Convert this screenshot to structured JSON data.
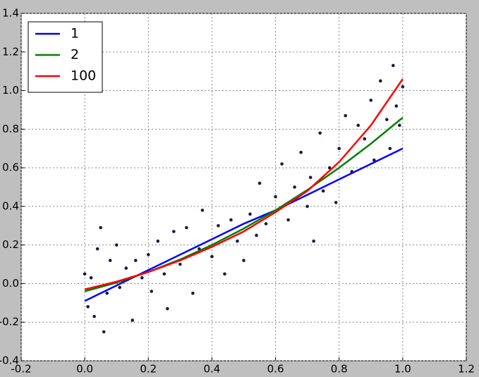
{
  "chart_data": {
    "type": "line",
    "xlim": [
      -0.2,
      1.2
    ],
    "xticks": [
      -0.2,
      {
        "value": 0,
        "label": "0.0"
      },
      0.2,
      0.4,
      0.6,
      0.8,
      {
        "value": 1,
        "label": "1.0"
      },
      1.2
    ],
    "ylim": [
      -0.4,
      1.4
    ],
    "yticks": [
      -0.4,
      -0.2,
      {
        "value": 0,
        "label": "0.0"
      },
      0.2,
      0.4,
      0.6,
      0.8,
      {
        "value": 1,
        "label": "1.0"
      },
      1.2,
      1.4
    ],
    "grid": true,
    "legend": "upper left",
    "points": {
      "color": "#1a1a40",
      "x": [
        0.0,
        0.01,
        0.02,
        0.03,
        0.04,
        0.05,
        0.06,
        0.07,
        0.08,
        0.1,
        0.11,
        0.13,
        0.15,
        0.16,
        0.18,
        0.2,
        0.21,
        0.23,
        0.25,
        0.26,
        0.28,
        0.3,
        0.32,
        0.34,
        0.36,
        0.37,
        0.4,
        0.42,
        0.44,
        0.46,
        0.48,
        0.5,
        0.52,
        0.54,
        0.55,
        0.57,
        0.6,
        0.62,
        0.64,
        0.66,
        0.68,
        0.7,
        0.71,
        0.72,
        0.74,
        0.75,
        0.77,
        0.79,
        0.8,
        0.82,
        0.84,
        0.86,
        0.88,
        0.9,
        0.91,
        0.93,
        0.95,
        0.96,
        0.97,
        0.98,
        1.0,
        0.99
      ],
      "y": [
        0.05,
        -0.12,
        0.03,
        -0.17,
        0.18,
        0.29,
        -0.25,
        -0.05,
        0.12,
        0.2,
        -0.02,
        0.08,
        -0.19,
        0.12,
        0.03,
        0.15,
        -0.04,
        0.22,
        0.05,
        -0.13,
        0.27,
        0.1,
        0.29,
        -0.05,
        0.18,
        0.38,
        0.14,
        0.3,
        0.05,
        0.33,
        0.22,
        0.12,
        0.36,
        0.25,
        0.52,
        0.31,
        0.45,
        0.62,
        0.33,
        0.5,
        0.68,
        0.4,
        0.55,
        0.22,
        0.78,
        0.48,
        0.6,
        0.42,
        0.7,
        0.87,
        0.58,
        0.82,
        0.75,
        0.95,
        0.64,
        1.05,
        0.85,
        0.7,
        1.13,
        0.92,
        1.02,
        0.82
      ]
    },
    "series": [
      {
        "name": "1",
        "color": "#0000ff",
        "x": [
          0,
          0.1,
          0.2,
          0.3,
          0.4,
          0.5,
          0.6,
          0.7,
          0.8,
          0.9,
          1.0
        ],
        "values": [
          -0.09,
          -0.01,
          0.07,
          0.15,
          0.23,
          0.31,
          0.38,
          0.46,
          0.54,
          0.62,
          0.7
        ]
      },
      {
        "name": "2",
        "color": "#008000",
        "x": [
          0,
          0.1,
          0.2,
          0.3,
          0.4,
          0.5,
          0.6,
          0.7,
          0.8,
          0.9,
          1.0
        ],
        "values": [
          -0.04,
          0.005,
          0.06,
          0.125,
          0.2,
          0.285,
          0.38,
          0.485,
          0.6,
          0.725,
          0.86
        ]
      },
      {
        "name": "100",
        "color": "#ff0000",
        "x": [
          0,
          0.1,
          0.2,
          0.3,
          0.4,
          0.5,
          0.6,
          0.7,
          0.8,
          0.9,
          1.0
        ],
        "values": [
          -0.03,
          0.01,
          0.06,
          0.12,
          0.19,
          0.27,
          0.37,
          0.48,
          0.63,
          0.82,
          1.06
        ]
      }
    ]
  }
}
